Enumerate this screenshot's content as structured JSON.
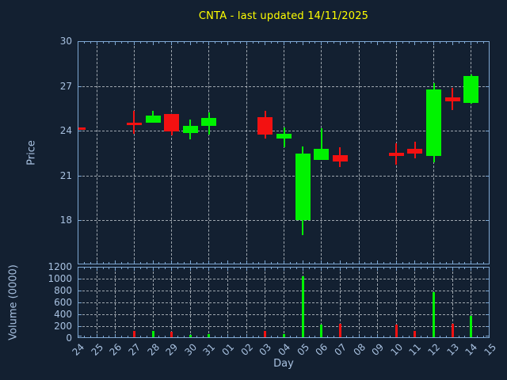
{
  "title": "CNTA - last updated 14/11/2025",
  "colors": {
    "background": "#132031",
    "frame": "#7fa8d3",
    "label": "#a8c1e0",
    "grid": "#d4dade",
    "up": "#00f300",
    "down": "#f31111",
    "title": "#ffff00"
  },
  "chart_data": [
    {
      "type": "candlestick",
      "panel": "price",
      "ylabel": "Price",
      "xlabel": "Day",
      "ylim": [
        15.05,
        30
      ],
      "yticks": [
        30,
        27,
        24,
        21,
        18
      ],
      "grid": "on",
      "x": [
        "24",
        "25",
        "26",
        "27",
        "28",
        "29",
        "30",
        "31",
        "01",
        "02",
        "03",
        "04",
        "05",
        "06",
        "07",
        "08",
        "09",
        "10",
        "11",
        "12",
        "13",
        "14",
        "15"
      ],
      "candles": [
        {
          "day": "24",
          "open": 24.25,
          "high": 24.25,
          "low": 24.1,
          "close": 24.1
        },
        {
          "day": "27",
          "open": 24.6,
          "high": 25.4,
          "low": 23.85,
          "close": 24.45
        },
        {
          "day": "28",
          "open": 24.6,
          "high": 25.4,
          "low": 24.6,
          "close": 25.05
        },
        {
          "day": "29",
          "open": 25.15,
          "high": 25.15,
          "low": 23.75,
          "close": 24.0
        },
        {
          "day": "30",
          "open": 23.9,
          "high": 24.8,
          "low": 23.5,
          "close": 24.4
        },
        {
          "day": "31",
          "open": 24.4,
          "high": 25.3,
          "low": 23.8,
          "close": 24.9
        },
        {
          "day": "03",
          "open": 24.95,
          "high": 25.4,
          "low": 23.55,
          "close": 23.8
        },
        {
          "day": "04",
          "open": 23.55,
          "high": 24.3,
          "low": 22.95,
          "close": 23.85
        },
        {
          "day": "05",
          "open": 18.05,
          "high": 23.0,
          "low": 17.05,
          "close": 22.55
        },
        {
          "day": "06",
          "open": 22.1,
          "high": 24.2,
          "low": 22.1,
          "close": 22.85
        },
        {
          "day": "07",
          "open": 22.4,
          "high": 22.95,
          "low": 21.6,
          "close": 22.0
        },
        {
          "day": "10",
          "open": 22.6,
          "high": 23.2,
          "low": 21.8,
          "close": 22.35
        },
        {
          "day": "11",
          "open": 22.85,
          "high": 23.3,
          "low": 22.2,
          "close": 22.55
        },
        {
          "day": "12",
          "open": 22.35,
          "high": 27.25,
          "low": 21.95,
          "close": 26.8
        },
        {
          "day": "13",
          "open": 26.3,
          "high": 26.95,
          "low": 25.45,
          "close": 26.0
        },
        {
          "day": "14",
          "open": 25.9,
          "high": 27.85,
          "low": 25.85,
          "close": 27.7
        }
      ]
    },
    {
      "type": "bar",
      "panel": "volume",
      "ylabel": "Volume (0000)",
      "ylim": [
        0,
        1200
      ],
      "yticks": [
        1200,
        1000,
        800,
        600,
        400,
        200,
        0
      ],
      "grid": "on",
      "bars": [
        {
          "day": "27",
          "value": 110,
          "dir": "down"
        },
        {
          "day": "28",
          "value": 110,
          "dir": "up"
        },
        {
          "day": "29",
          "value": 90,
          "dir": "down"
        },
        {
          "day": "30",
          "value": 40,
          "dir": "up"
        },
        {
          "day": "31",
          "value": 55,
          "dir": "up"
        },
        {
          "day": "03",
          "value": 110,
          "dir": "down"
        },
        {
          "day": "04",
          "value": 55,
          "dir": "up"
        },
        {
          "day": "05",
          "value": 1025,
          "dir": "up"
        },
        {
          "day": "06",
          "value": 215,
          "dir": "up"
        },
        {
          "day": "07",
          "value": 230,
          "dir": "down"
        },
        {
          "day": "10",
          "value": 215,
          "dir": "down"
        },
        {
          "day": "11",
          "value": 105,
          "dir": "down"
        },
        {
          "day": "12",
          "value": 765,
          "dir": "up"
        },
        {
          "day": "13",
          "value": 230,
          "dir": "down"
        },
        {
          "day": "14",
          "value": 355,
          "dir": "up"
        }
      ]
    }
  ]
}
